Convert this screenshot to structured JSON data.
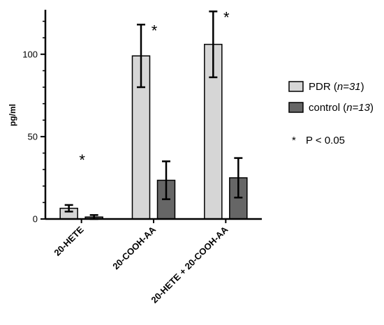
{
  "chart_data": {
    "type": "bar",
    "title": "",
    "xlabel": "",
    "ylabel": "pg/ml",
    "ylim": [
      0,
      127
    ],
    "yticks": [
      0,
      50,
      100
    ],
    "grid": false,
    "legend_position": "right",
    "categories": [
      "20-HETE",
      "20-COOH-AA",
      "20-HETE + 20-COOH-AA"
    ],
    "series": [
      {
        "name": "PDR",
        "n_label": "n=31",
        "color": "#d6d6d6",
        "values": [
          6.5,
          99,
          106
        ],
        "error": [
          2,
          19,
          20
        ]
      },
      {
        "name": "control",
        "n_label": "n=13",
        "color": "#666666",
        "values": [
          1.2,
          23.5,
          25
        ],
        "error": [
          1.2,
          11.5,
          12
        ]
      }
    ],
    "significance": [
      {
        "category": "20-HETE",
        "marker": "*"
      },
      {
        "category": "20-COOH-AA",
        "marker": "*"
      },
      {
        "category": "20-HETE + 20-COOH-AA",
        "marker": "*"
      }
    ],
    "legend_note": {
      "marker": "*",
      "text": "P < 0.05"
    }
  }
}
